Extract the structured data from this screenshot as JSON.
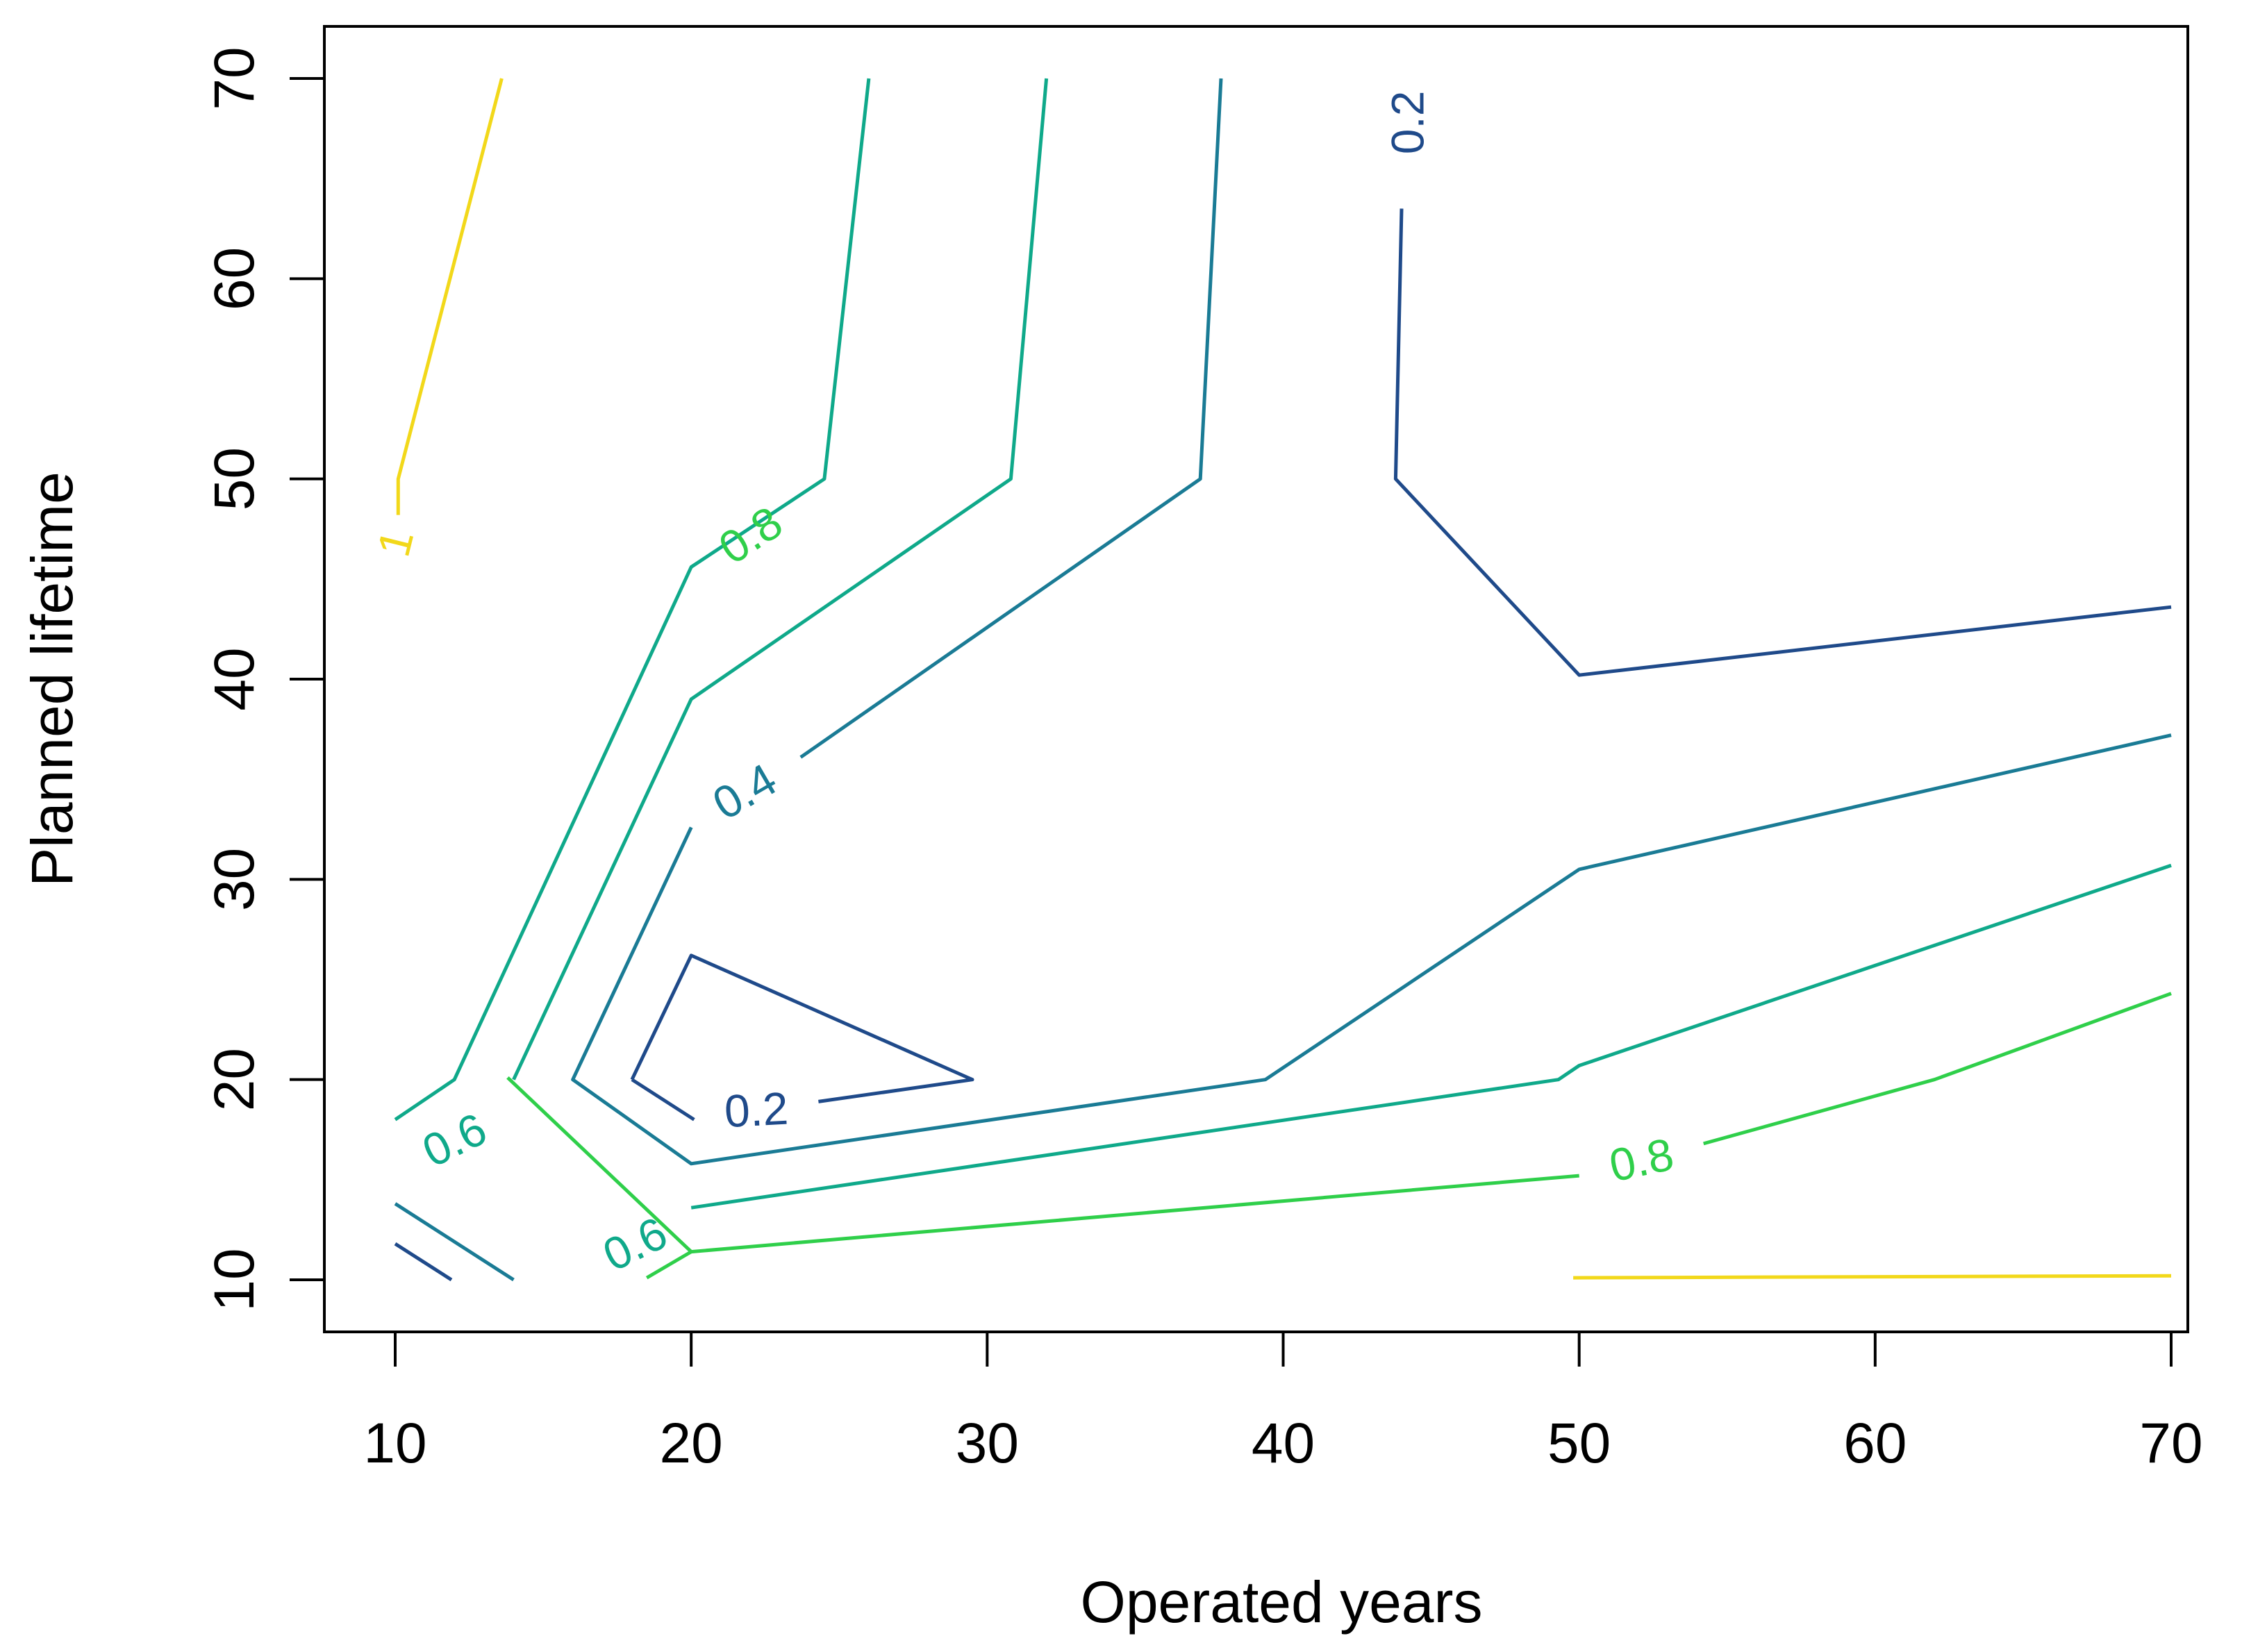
{
  "chart_data": {
    "type": "contour",
    "title": "",
    "xlabel": "Operated years",
    "ylabel": "Planned lifetime",
    "xlim": [
      7.5,
      72.5
    ],
    "ylim": [
      7.5,
      72.5
    ],
    "xticks": [
      10,
      20,
      30,
      40,
      50,
      60,
      70
    ],
    "yticks": [
      10,
      20,
      30,
      40,
      50,
      60,
      70
    ],
    "grid": false,
    "levels": [
      {
        "level": 0.2,
        "label": "0.2",
        "color": "#1f4a8a",
        "paths": [
          [
            [
              18,
              20
            ],
            [
              20,
              26.2
            ],
            [
              29.5,
              20
            ],
            [
              24.3,
              18.9
            ]
          ],
          [
            [
              20.1,
              18
            ],
            [
              18,
              20
            ]
          ],
          [
            [
              10,
              11.8
            ],
            [
              11.9,
              10
            ]
          ],
          [
            [
              44,
              63.5
            ],
            [
              43.8,
              50
            ],
            [
              50,
              40.2
            ],
            [
              70,
              43.6
            ]
          ]
        ],
        "labels": [
          {
            "x": 22.2,
            "y": 18.5,
            "angle": -3
          },
          {
            "x": 44.2,
            "y": 67.8,
            "angle": -90
          }
        ]
      },
      {
        "level": 0.4,
        "label": "0.4",
        "color": "#1a7b95",
        "paths": [
          [
            [
              23.7,
              36.1
            ],
            [
              37.2,
              50
            ],
            [
              37.9,
              70
            ]
          ],
          [
            [
              20,
              32.6
            ],
            [
              16,
              20
            ],
            [
              20,
              15.8
            ],
            [
              39.4,
              20
            ],
            [
              50,
              30.5
            ],
            [
              70,
              37.2
            ]
          ],
          [
            [
              10,
              13.8
            ],
            [
              14,
              10
            ]
          ]
        ],
        "labels": [
          {
            "x": 21.8,
            "y": 34.4,
            "angle": -30
          }
        ]
      },
      {
        "level": 0.6,
        "label": "0.6",
        "color": "#0fa98a",
        "paths": [
          [
            [
              14,
              20
            ],
            [
              20,
              39
            ],
            [
              30.8,
              50
            ],
            [
              32,
              70
            ]
          ],
          [
            [
              20,
              13.6
            ],
            [
              49.3,
              20
            ],
            [
              50,
              20.7
            ],
            [
              70,
              30.7
            ]
          ],
          [
            [
              10,
              18
            ],
            [
              12,
              20
            ],
            [
              20,
              45.6
            ],
            [
              24.5,
              50
            ],
            [
              26,
              70
            ]
          ]
        ],
        "labels": [
          {
            "x": 12.0,
            "y": 17.0,
            "angle": -26
          },
          {
            "x": 18.1,
            "y": 11.8,
            "angle": -26
          }
        ]
      },
      {
        "level": 0.8,
        "label": "0.8",
        "color": "#2fcf4a",
        "paths": [
          [
            [
              13.8,
              20.1
            ],
            [
              20,
              11.4
            ],
            [
              50,
              15.2
            ]
          ],
          [
            [
              18.5,
              10.1
            ],
            [
              20,
              11.4
            ]
          ],
          [
            [
              54.2,
              16.8
            ],
            [
              62,
              20
            ],
            [
              70,
              24.3
            ]
          ]
        ],
        "labels": [
          {
            "x": 22.0,
            "y": 47.2,
            "angle": -33
          },
          {
            "x": 52.1,
            "y": 16.0,
            "angle": -12
          }
        ]
      },
      {
        "level": 1,
        "label": "1",
        "color": "#f2d81a",
        "paths": [
          [
            [
              10.1,
              48.2
            ],
            [
              10.1,
              50
            ],
            [
              13.6,
              70
            ]
          ],
          [
            [
              49.8,
              10.1
            ],
            [
              70,
              10.2
            ]
          ]
        ],
        "labels": [
          {
            "x": 10.0,
            "y": 46.8,
            "angle": -76
          }
        ]
      }
    ]
  }
}
